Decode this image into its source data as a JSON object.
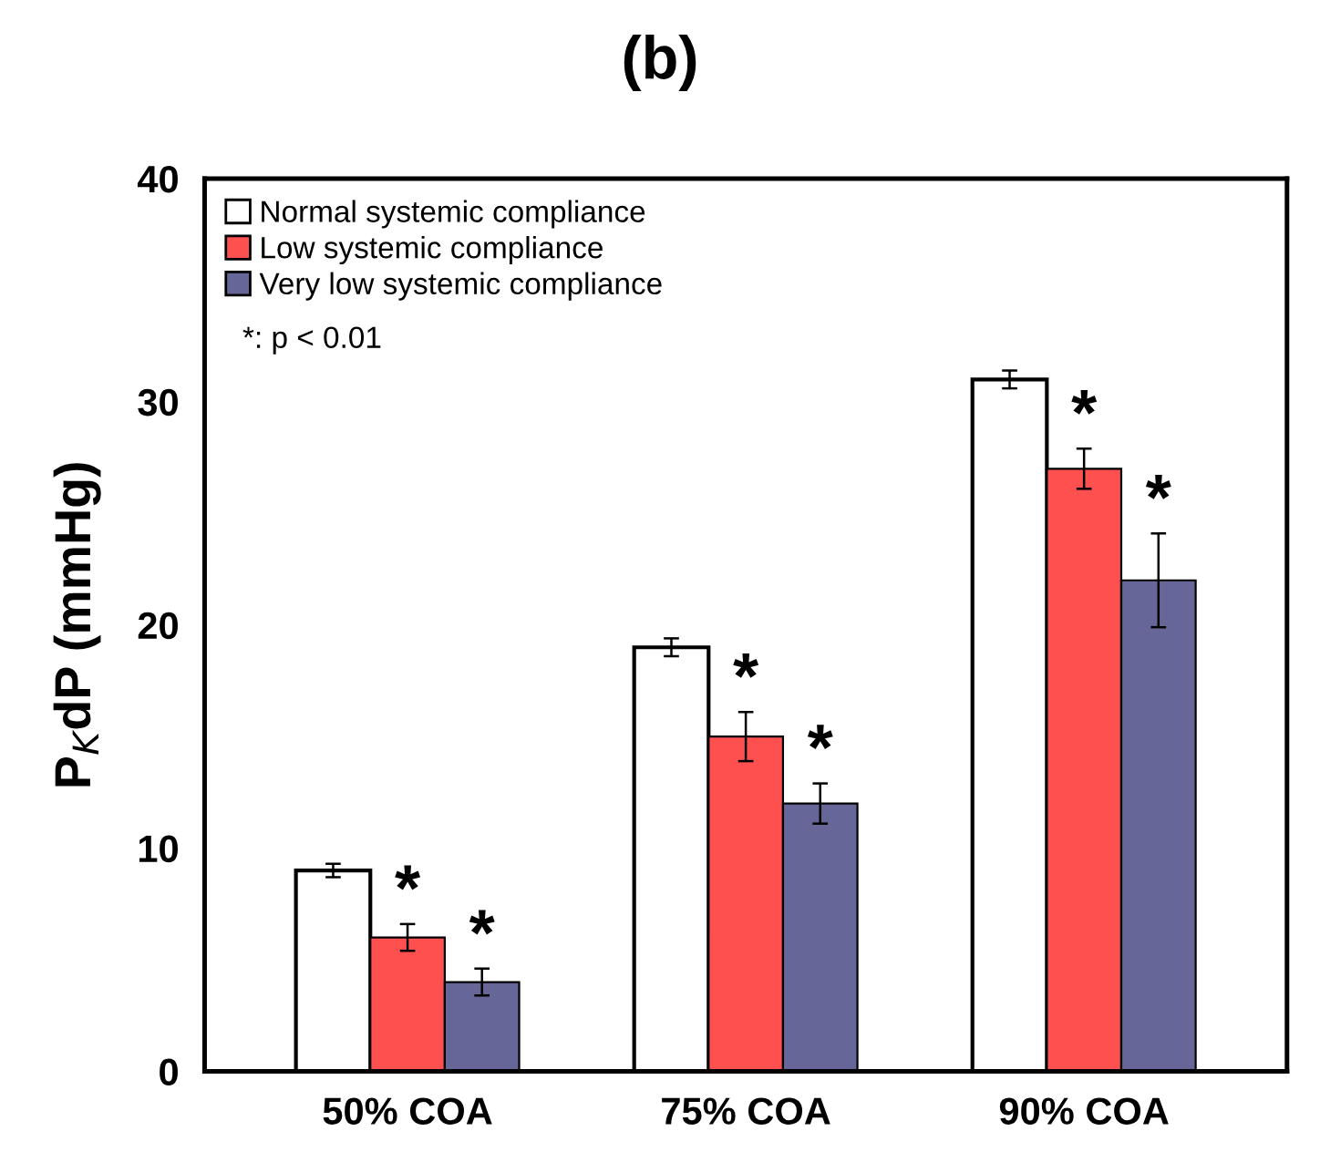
{
  "chart_data": {
    "type": "bar",
    "title": "(b)",
    "ylabel": "P$_{K}$dP (mmHg)",
    "categories": [
      "50% COA",
      "75% COA",
      "90% COA"
    ],
    "series": [
      {
        "name": "Normal systemic compliance",
        "color": "#ffffff",
        "values": [
          9,
          19,
          31
        ],
        "errors": [
          0.3,
          0.4,
          0.4
        ]
      },
      {
        "name": "Low systemic compliance",
        "color": "#ff5050",
        "values": [
          6,
          15,
          27
        ],
        "errors": [
          0.6,
          1.1,
          0.9
        ],
        "value_labels": [
          "*",
          "*",
          "*"
        ]
      },
      {
        "name": "Very low systemic compliance",
        "color": "#666699",
        "values": [
          4,
          12,
          22
        ],
        "errors": [
          0.6,
          0.9,
          2.1
        ],
        "value_labels": [
          "*",
          "*",
          "*"
        ]
      }
    ],
    "ylim": [
      0,
      40
    ],
    "yticks": [
      0,
      10,
      20,
      30,
      40
    ],
    "grid": false,
    "legend": "top left",
    "annotations": [
      "*: p < 0.01"
    ]
  }
}
